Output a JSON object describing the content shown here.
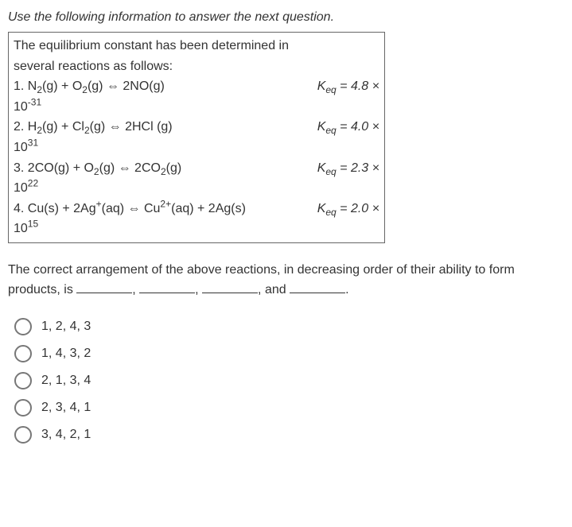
{
  "instruction": "Use the following information to answer the next question.",
  "info_intro_line1": "The equilibrium constant has been determined in",
  "info_intro_line2": "several reactions as follows:",
  "reactions": [
    {
      "lhs_html": "1. N<sub>2</sub>(g) + O<sub>2</sub>(g) ⇔ 2NO(g)",
      "keq_val": "= 4.8 ×",
      "cont": "10<sup>-31</sup>"
    },
    {
      "lhs_html": "2. H<sub>2</sub>(g) + Cl<sub>2</sub>(g) ⇔ 2HCl (g)",
      "keq_val": "= 4.0 ×",
      "cont": "10<sup>31</sup>"
    },
    {
      "lhs_html": "3. 2CO(g) + O<sub>2</sub>(g) ⇔ 2CO<sub>2</sub>(g)",
      "keq_val": "= 2.3 ×",
      "cont": "10<sup>22</sup>"
    },
    {
      "lhs_html": "4. Cu(s) + 2Ag<sup>+</sup>(aq) ⇔ Cu<sup>2+</sup>(aq) + 2Ag(s)",
      "keq_val": "= 2.0 ×",
      "cont": "10<sup>15</sup>"
    }
  ],
  "stem_part1": "The correct arrangement of the above reactions, in decreasing order of their ability to form products, is ",
  "stem_and": ", and ",
  "stem_end": ".",
  "options": [
    "1, 2, 4, 3",
    "1, 4, 3, 2",
    "2, 1, 3, 4",
    "2, 3, 4, 1",
    "3, 4, 2, 1"
  ]
}
